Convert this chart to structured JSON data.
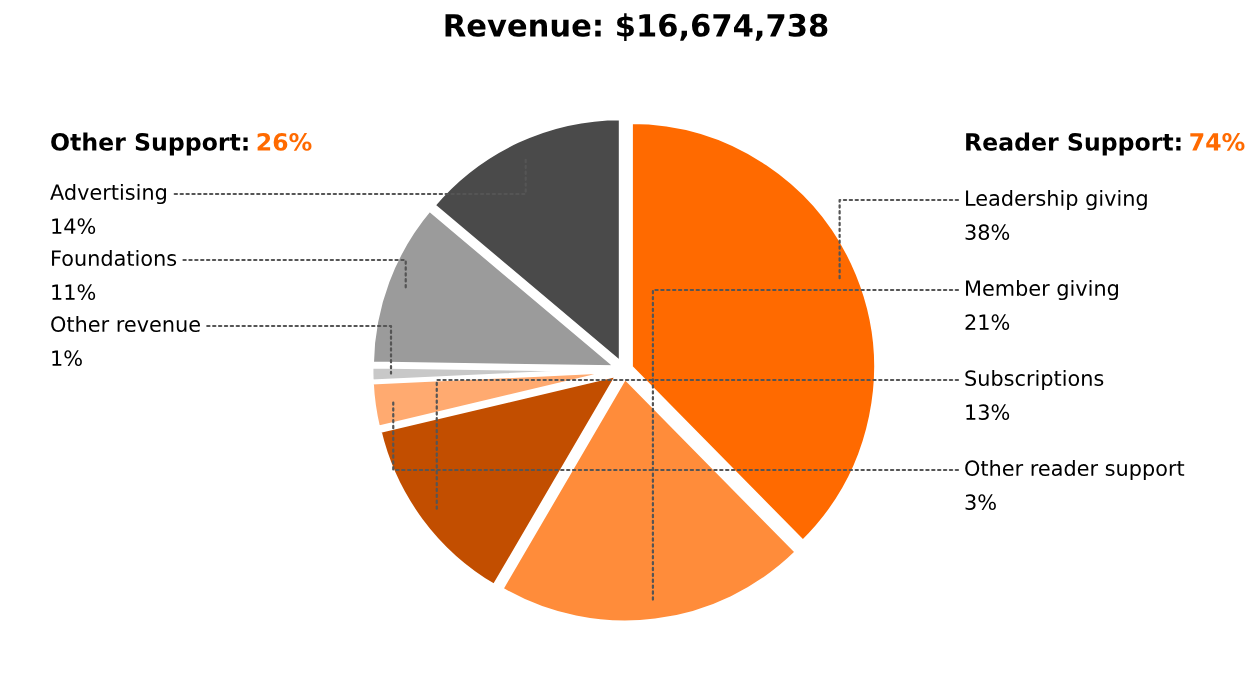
{
  "chart_data": {
    "type": "pie",
    "title": "Revenue: $16,674,738",
    "categories": [
      "Leadership giving",
      "Member giving",
      "Subscriptions",
      "Other reader support",
      "Other revenue",
      "Foundations",
      "Advertising"
    ],
    "values": [
      38,
      21,
      13,
      3,
      1,
      11,
      14
    ],
    "colors": [
      "#ff6a00",
      "#ff8c3a",
      "#c24e00",
      "#ffaa70",
      "#c8c8c8",
      "#9b9b9b",
      "#4a4a4a"
    ],
    "annotations": [
      "Other Support:",
      "26%",
      "Reader Support:",
      "74%"
    ],
    "value_labels": [
      "38%",
      "21%",
      "13%",
      "3%",
      "1%",
      "11%",
      "14%"
    ]
  }
}
